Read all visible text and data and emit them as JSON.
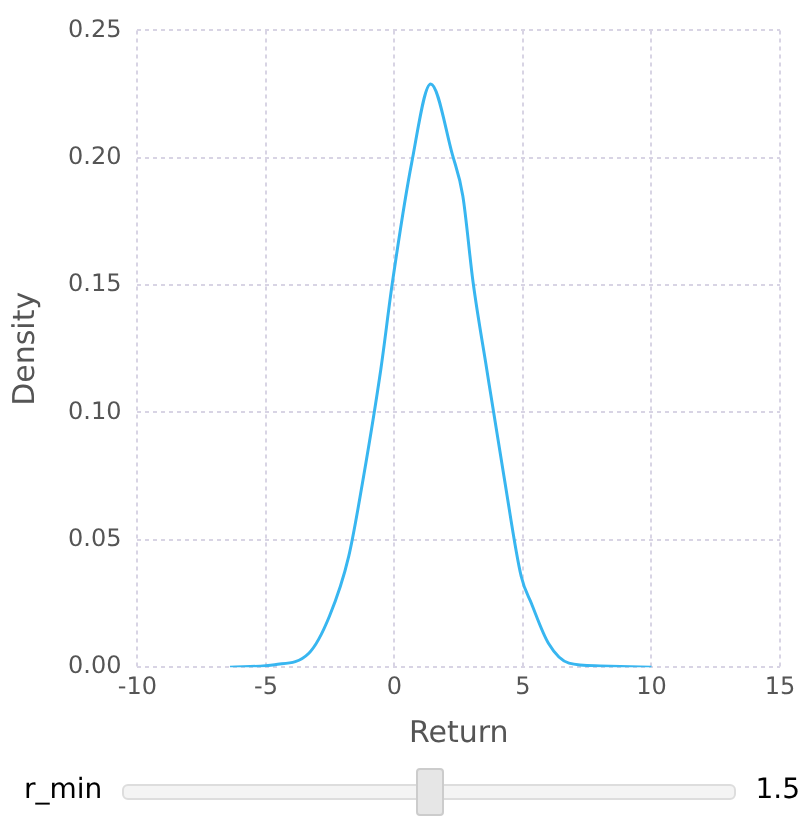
{
  "chart_data": {
    "type": "line",
    "xlabel": "Return",
    "ylabel": "Density",
    "x": [
      -6.4,
      -4.66,
      -3.33,
      -2.53,
      -1.78,
      -1.2,
      -0.53,
      -0.08,
      0.67,
      1.41,
      2.26,
      2.66,
      3.06,
      3.59,
      4.26,
      4.93,
      5.33,
      5.99,
      6.79,
      8,
      10
    ],
    "series": [
      {
        "color": "#38b6f0",
        "values": [
          0,
          0.001,
          0.0055,
          0.02,
          0.0435,
          0.075,
          0.117,
          0.151,
          0.198,
          0.229,
          0.201,
          0.185,
          0.151,
          0.117,
          0.075,
          0.0357,
          0.025,
          0.0094,
          0.0016,
          0.0005,
          0
        ]
      }
    ],
    "xlim": [
      -10,
      15
    ],
    "xticks": [
      -10,
      -5,
      0,
      5,
      10,
      15
    ],
    "ylim": [
      0,
      0.25
    ],
    "yticks": [
      {
        "value": 0,
        "label": "0.00"
      },
      {
        "value": 0.05,
        "label": "0.05"
      },
      {
        "value": 0.1,
        "label": "0.10"
      },
      {
        "value": 0.15,
        "label": "0.15"
      },
      {
        "value": 0.2,
        "label": "0.20"
      },
      {
        "value": 0.25,
        "label": "0.25"
      }
    ],
    "grid": true,
    "legend": false,
    "marker": "none",
    "line_style": "solid",
    "annotations": [
      "r_min",
      "1.5"
    ]
  }
}
